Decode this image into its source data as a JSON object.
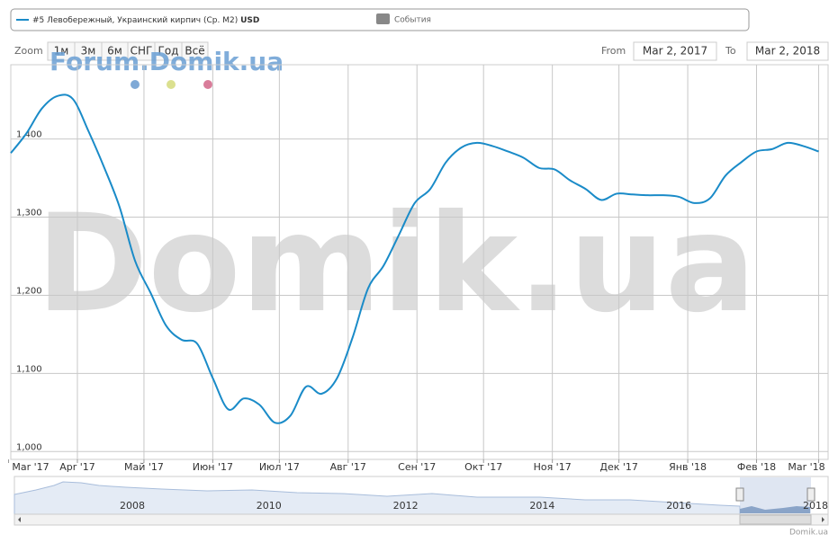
{
  "legend": {
    "series_unit": "USD",
    "events": "События"
  },
  "range_selector": {
    "zoom_label": "Zoom",
    "buttons": [
      "1м",
      "3м",
      "6м",
      "СНГ",
      "Год",
      "Всё"
    ],
    "from_label": "From",
    "from": "Mar 2, 2017",
    "to_label": "To",
    "to": "Mar 2, 2018"
  },
  "watermarks": [
    "Forum.Domik.ua",
    "Domik.ua"
  ],
  "credit": "Domik.ua",
  "navigator": {
    "labels": [
      "2008",
      "2010",
      "2012",
      "2014",
      "2016",
      "2018"
    ]
  },
  "chart_data": {
    "type": "line",
    "x": [
      "2017-03-02",
      "2017-03-09",
      "2017-03-16",
      "2017-03-23",
      "2017-03-30",
      "2017-04-06",
      "2017-04-13",
      "2017-04-20",
      "2017-04-27",
      "2017-05-04",
      "2017-05-11",
      "2017-05-18",
      "2017-05-25",
      "2017-06-01",
      "2017-06-08",
      "2017-06-15",
      "2017-06-22",
      "2017-06-29",
      "2017-07-06",
      "2017-07-13",
      "2017-07-20",
      "2017-07-27",
      "2017-08-03",
      "2017-08-10",
      "2017-08-17",
      "2017-08-24",
      "2017-08-31",
      "2017-09-07",
      "2017-09-14",
      "2017-09-21",
      "2017-09-28",
      "2017-10-05",
      "2017-10-12",
      "2017-10-19",
      "2017-10-26",
      "2017-11-02",
      "2017-11-09",
      "2017-11-16",
      "2017-11-23",
      "2017-11-30",
      "2017-12-07",
      "2017-12-14",
      "2017-12-21",
      "2017-12-28",
      "2018-01-04",
      "2018-01-11",
      "2018-01-18",
      "2018-01-25",
      "2018-02-01",
      "2018-02-08",
      "2018-02-15",
      "2018-02-22",
      "2018-03-01"
    ],
    "series": [
      {
        "name": "#5 Левобережный, Украинский кирпич (Ср. М2)",
        "color": "#1a8bc8",
        "values": [
          1382,
          1407,
          1439,
          1455,
          1451,
          1410,
          1364,
          1313,
          1244,
          1203,
          1161,
          1143,
          1138,
          1094,
          1054,
          1068,
          1060,
          1037,
          1046,
          1083,
          1074,
          1094,
          1146,
          1209,
          1238,
          1278,
          1318,
          1336,
          1370,
          1389,
          1395,
          1391,
          1384,
          1376,
          1363,
          1361,
          1347,
          1336,
          1322,
          1330,
          1329,
          1328,
          1328,
          1326,
          1318,
          1324,
          1353,
          1370,
          1384,
          1387,
          1395,
          1391,
          1384
        ]
      }
    ],
    "xlim": [
      "2017-03-02",
      "2018-03-02"
    ],
    "xticks": [
      {
        "value": "2017-03-01",
        "label": "Mar '17"
      },
      {
        "value": "2017-04-01",
        "label": "Apr '17"
      },
      {
        "value": "2017-05-01",
        "label": "Май '17"
      },
      {
        "value": "2017-06-01",
        "label": "Июн '17"
      },
      {
        "value": "2017-07-01",
        "label": "Июл '17"
      },
      {
        "value": "2017-08-01",
        "label": "Авг '17"
      },
      {
        "value": "2017-09-01",
        "label": "Сен '17"
      },
      {
        "value": "2017-10-01",
        "label": "Окт '17"
      },
      {
        "value": "2017-11-01",
        "label": "Ноя '17"
      },
      {
        "value": "2017-12-01",
        "label": "Дек '17"
      },
      {
        "value": "2018-01-01",
        "label": "Янв '18"
      },
      {
        "value": "2018-02-01",
        "label": "Фев '18"
      },
      {
        "value": "2018-03-01",
        "label": "Mar '18"
      }
    ],
    "ylim": [
      990,
      1495
    ],
    "yticks": [
      {
        "value": 1000,
        "label": "1,000"
      },
      {
        "value": 1100,
        "label": "1,100"
      },
      {
        "value": 1200,
        "label": "1,200"
      },
      {
        "value": 1300,
        "label": "1,300"
      },
      {
        "value": 1400,
        "label": "1,400"
      }
    ],
    "grid": true
  }
}
